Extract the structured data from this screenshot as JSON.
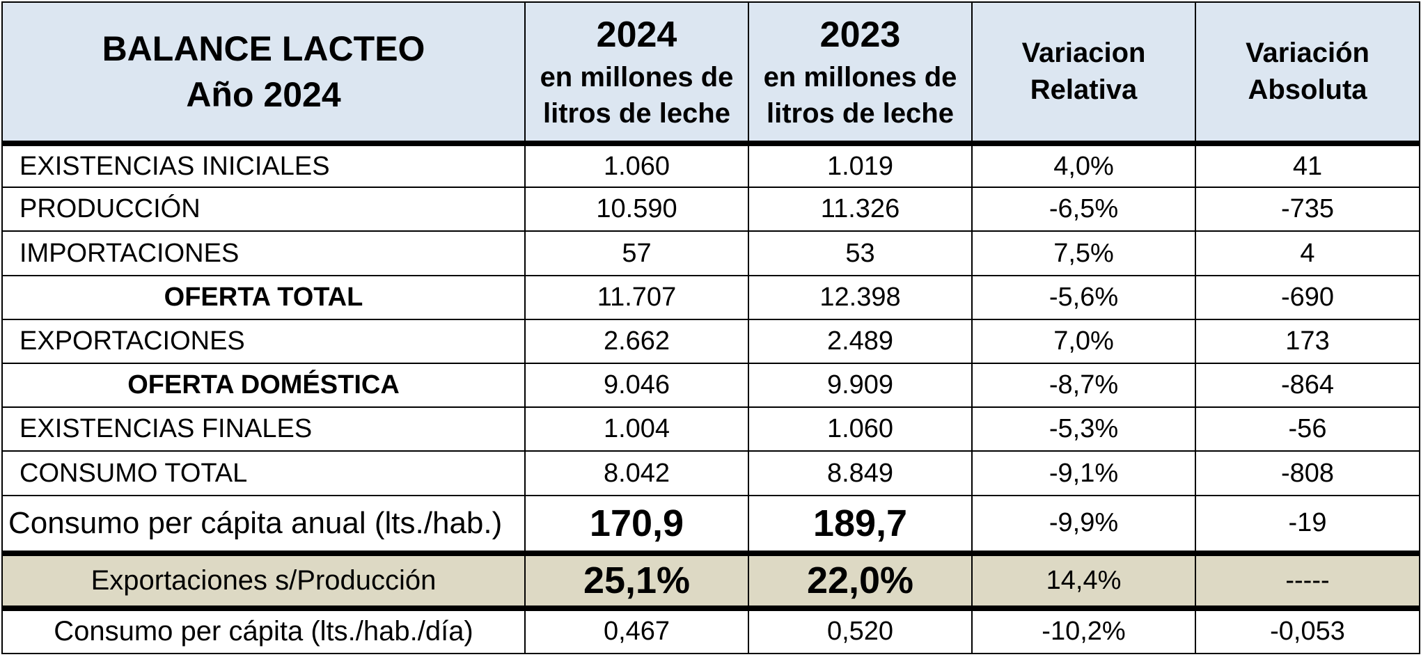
{
  "header": {
    "title_line1": "BALANCE LACTEO",
    "title_line2": "Año 2024",
    "col_2024_year": "2024",
    "col_2024_unit": "en millones de litros de leche",
    "col_2023_year": "2023",
    "col_2023_unit": "en millones de litros de leche",
    "col_rel_line1": "Variacion",
    "col_rel_line2": "Relativa",
    "col_abs_line1": "Variación",
    "col_abs_line2": "Absoluta"
  },
  "rows": [
    {
      "label": "EXISTENCIAS  INICIALES",
      "v2024": "1.060",
      "v2023": "1.019",
      "rel": "4,0%",
      "abs": "41"
    },
    {
      "label": "PRODUCCIÓN",
      "v2024": "10.590",
      "v2023": "11.326",
      "rel": "-6,5%",
      "abs": "-735"
    },
    {
      "label": "IMPORTACIONES",
      "v2024": "57",
      "v2023": "53",
      "rel": "7,5%",
      "abs": "4"
    },
    {
      "label": "OFERTA TOTAL",
      "v2024": "11.707",
      "v2023": "12.398",
      "rel": "-5,6%",
      "abs": "-690"
    },
    {
      "label": "EXPORTACIONES",
      "v2024": "2.662",
      "v2023": "2.489",
      "rel": "7,0%",
      "abs": "173"
    },
    {
      "label": "OFERTA DOMÉSTICA",
      "v2024": "9.046",
      "v2023": "9.909",
      "rel": "-8,7%",
      "abs": "-864"
    },
    {
      "label": "EXISTENCIAS FINALES",
      "v2024": "1.004",
      "v2023": "1.060",
      "rel": "-5,3%",
      "abs": "-56"
    },
    {
      "label": "CONSUMO TOTAL",
      "v2024": "8.042",
      "v2023": "8.849",
      "rel": "-9,1%",
      "abs": "-808"
    }
  ],
  "per_capita": {
    "label": "Consumo per cápita anual (lts./hab.)",
    "v2024": "170,9",
    "v2023": "189,7",
    "rel": "-9,9%",
    "abs": "-19"
  },
  "ratio": {
    "label": "Exportaciones s/Producción",
    "v2024": "25,1%",
    "v2023": "22,0%",
    "rel": "14,4%",
    "abs": "-----"
  },
  "daily": {
    "label": "Consumo per cápita (lts./hab./día)",
    "v2024": "0,467",
    "v2023": "0,520",
    "rel": "-10,2%",
    "abs": "-0,053"
  },
  "colors": {
    "header_bg": "#dce6f1",
    "ratio_bg": "#ddd9c4"
  }
}
